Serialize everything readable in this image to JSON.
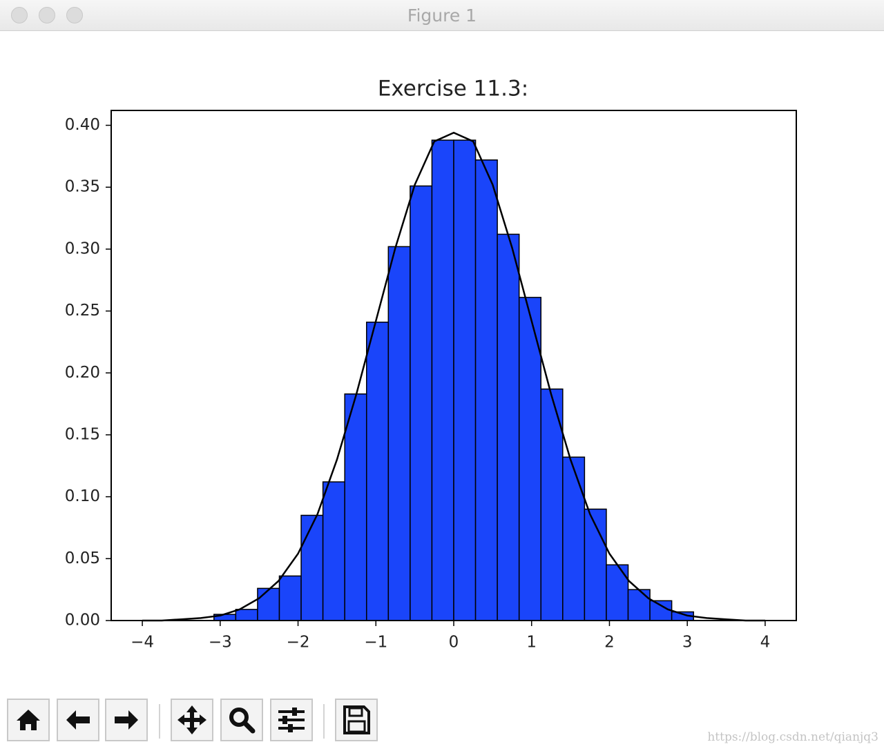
{
  "window": {
    "title": "Figure 1"
  },
  "chart_data": {
    "type": "histogram",
    "title": "Exercise 11.3:",
    "bins": [
      -3.08,
      -2.8,
      -2.52,
      -2.24,
      -1.96,
      -1.68,
      -1.4,
      -1.12,
      -0.84,
      -0.56,
      -0.28,
      0,
      0.28,
      0.56,
      0.84,
      1.12,
      1.4,
      1.68,
      1.96,
      2.24,
      2.52,
      2.8,
      3.08
    ],
    "values": [
      0.005,
      0.009,
      0.026,
      0.036,
      0.085,
      0.112,
      0.183,
      0.241,
      0.302,
      0.351,
      0.388,
      0.388,
      0.372,
      0.312,
      0.261,
      0.187,
      0.132,
      0.09,
      0.045,
      0.025,
      0.016,
      0.007
    ],
    "color": "#1a45fa",
    "edgecolor": "#000000",
    "overlay": {
      "type": "line",
      "color": "#000000",
      "x": [
        -4,
        -3.75,
        -3.5,
        -3.25,
        -3,
        -2.75,
        -2.5,
        -2.25,
        -2,
        -1.75,
        -1.5,
        -1.25,
        -1,
        -0.75,
        -0.5,
        -0.25,
        0,
        0.25,
        0.5,
        0.75,
        1,
        1.25,
        1.5,
        1.75,
        2,
        2.25,
        2.5,
        2.75,
        3,
        3.25,
        3.5,
        3.75,
        4
      ],
      "values": [
        0.0,
        0.0,
        0.001,
        0.002,
        0.004,
        0.009,
        0.018,
        0.032,
        0.054,
        0.086,
        0.13,
        0.183,
        0.242,
        0.301,
        0.352,
        0.387,
        0.394,
        0.387,
        0.352,
        0.301,
        0.242,
        0.183,
        0.13,
        0.086,
        0.054,
        0.032,
        0.018,
        0.009,
        0.004,
        0.002,
        0.001,
        0.0,
        0.0
      ]
    },
    "xlim": [
      -4.4,
      4.4
    ],
    "ylim": [
      0,
      0.412
    ],
    "xticks": [
      {
        "value": -4,
        "label": "−4"
      },
      {
        "value": -3,
        "label": "−3"
      },
      {
        "value": -2,
        "label": "−2"
      },
      {
        "value": -1,
        "label": "−1"
      },
      0,
      1,
      2,
      3,
      4
    ],
    "yticks": [
      {
        "value": 0,
        "label": "0.00"
      },
      {
        "value": 0.05,
        "label": "0.05"
      },
      {
        "value": 0.1,
        "label": "0.10"
      },
      {
        "value": 0.15,
        "label": "0.15"
      },
      {
        "value": 0.2,
        "label": "0.20"
      },
      {
        "value": 0.25,
        "label": "0.25"
      },
      {
        "value": 0.3,
        "label": "0.30"
      },
      {
        "value": 0.35,
        "label": "0.35"
      },
      {
        "value": 0.4,
        "label": "0.40"
      }
    ],
    "grid": false
  },
  "watermark": "https://blog.csdn.net/qianjq3"
}
